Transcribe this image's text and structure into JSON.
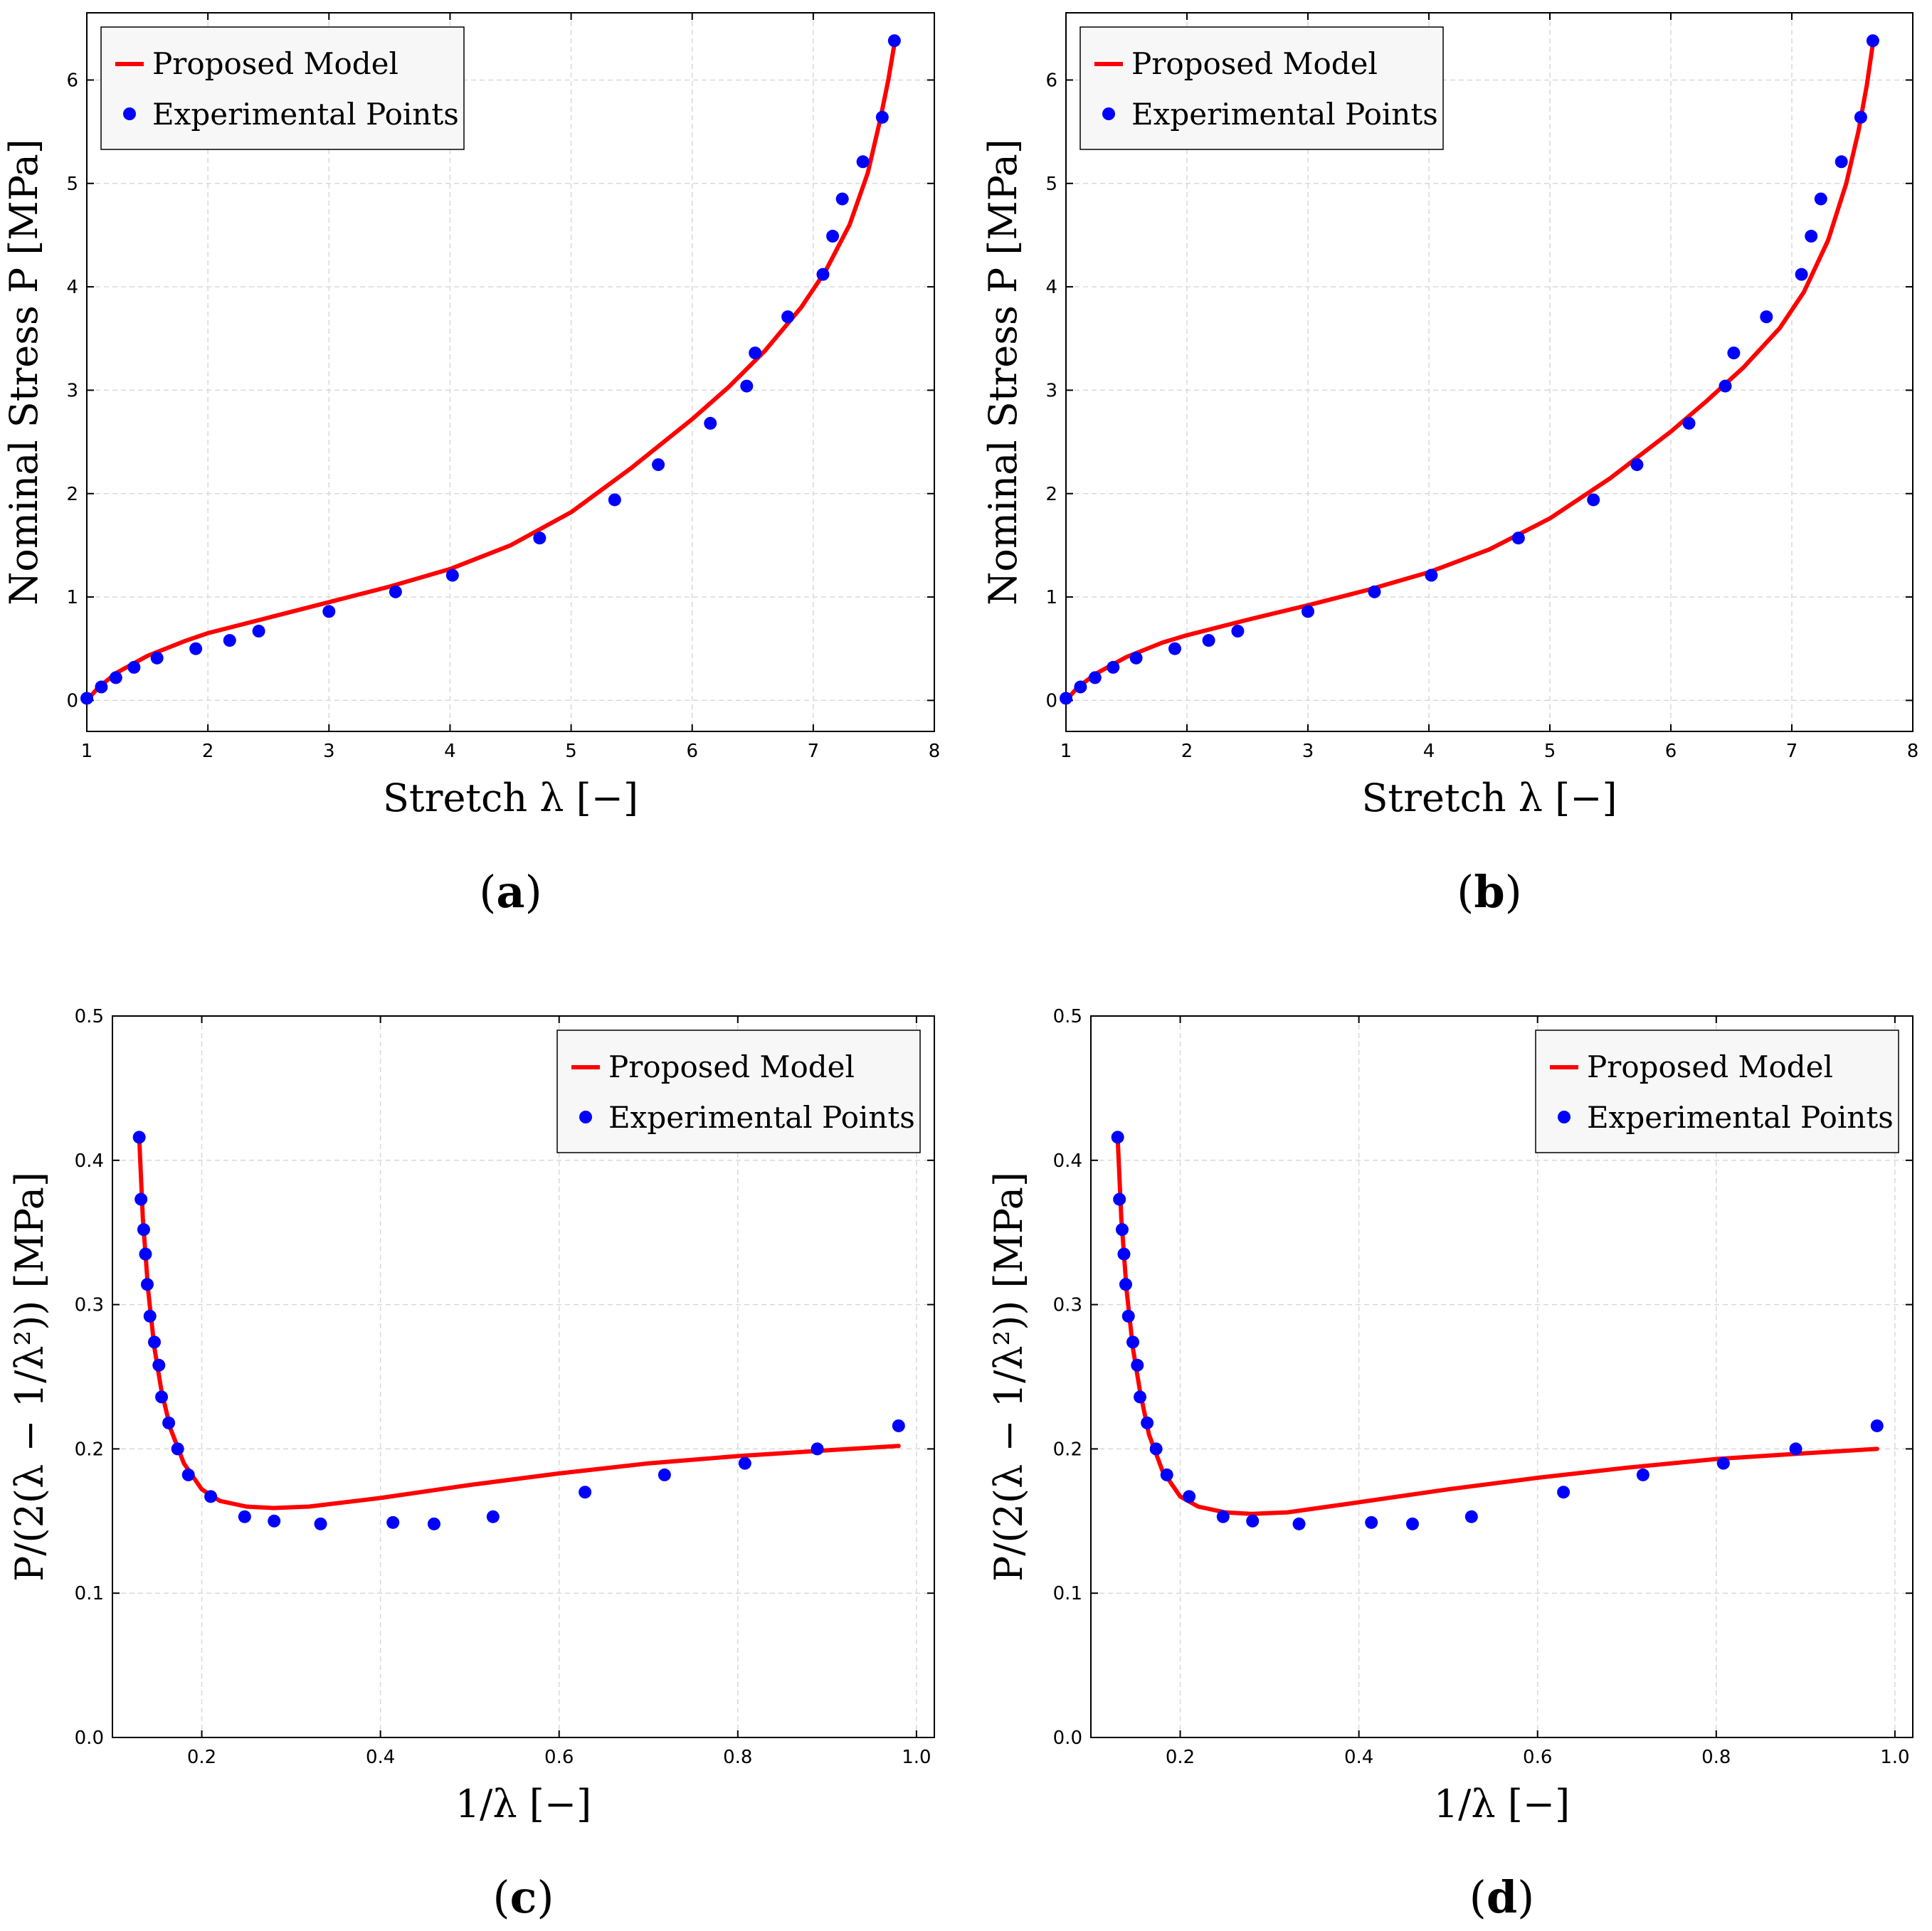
{
  "chart_data": [
    {
      "type": "scatter+line",
      "panel_label": "a",
      "xlabel": "Stretch λ [−]",
      "ylabel": "Nominal Stress P [MPa]",
      "xlim": [
        1,
        8
      ],
      "ylim": [
        -0.3,
        6.65
      ],
      "xticks": [
        1,
        2,
        3,
        4,
        5,
        6,
        7,
        8
      ],
      "yticks": [
        0,
        1,
        2,
        3,
        4,
        5,
        6
      ],
      "grid": true,
      "legend_position": "top-left",
      "legend": [
        "Proposed Model",
        "Experimental Points"
      ],
      "series": [
        {
          "name": "Proposed Model",
          "kind": "line",
          "color": "#ff0000",
          "x": [
            1.0,
            1.1,
            1.25,
            1.5,
            1.8,
            2.0,
            2.5,
            3.0,
            3.5,
            4.0,
            4.5,
            5.0,
            5.5,
            6.0,
            6.3,
            6.6,
            6.9,
            7.1,
            7.3,
            7.45,
            7.55,
            7.62,
            7.67
          ],
          "y": [
            0.0,
            0.13,
            0.27,
            0.43,
            0.57,
            0.65,
            0.8,
            0.95,
            1.1,
            1.27,
            1.5,
            1.82,
            2.25,
            2.72,
            3.03,
            3.38,
            3.8,
            4.15,
            4.6,
            5.1,
            5.6,
            6.0,
            6.35
          ]
        },
        {
          "name": "Experimental Points",
          "kind": "scatter",
          "color": "#0000ff",
          "x": [
            1.0,
            1.12,
            1.24,
            1.39,
            1.58,
            1.9,
            2.18,
            2.42,
            3.0,
            3.55,
            4.02,
            4.74,
            5.36,
            5.72,
            6.15,
            6.45,
            6.52,
            6.79,
            7.08,
            7.16,
            7.24,
            7.41,
            7.57,
            7.67
          ],
          "y": [
            0.02,
            0.13,
            0.22,
            0.32,
            0.41,
            0.5,
            0.58,
            0.67,
            0.86,
            1.05,
            1.21,
            1.57,
            1.94,
            2.28,
            2.68,
            3.04,
            3.36,
            3.71,
            4.12,
            4.49,
            4.85,
            5.21,
            5.64,
            6.38
          ]
        }
      ]
    },
    {
      "type": "scatter+line",
      "panel_label": "b",
      "xlabel": "Stretch λ [−]",
      "ylabel": "Nominal Stress P [MPa]",
      "xlim": [
        1,
        8
      ],
      "ylim": [
        -0.3,
        6.65
      ],
      "xticks": [
        1,
        2,
        3,
        4,
        5,
        6,
        7,
        8
      ],
      "yticks": [
        0,
        1,
        2,
        3,
        4,
        5,
        6
      ],
      "grid": true,
      "legend_position": "top-left",
      "legend": [
        "Proposed Model",
        "Experimental Points"
      ],
      "series": [
        {
          "name": "Proposed Model",
          "kind": "line",
          "color": "#ff0000",
          "x": [
            1.0,
            1.1,
            1.25,
            1.5,
            1.8,
            2.0,
            2.5,
            3.0,
            3.5,
            4.0,
            4.5,
            5.0,
            5.5,
            6.0,
            6.3,
            6.6,
            6.9,
            7.1,
            7.3,
            7.45,
            7.55,
            7.62,
            7.67
          ],
          "y": [
            0.0,
            0.13,
            0.26,
            0.42,
            0.56,
            0.63,
            0.78,
            0.92,
            1.07,
            1.24,
            1.46,
            1.76,
            2.15,
            2.6,
            2.9,
            3.22,
            3.6,
            3.95,
            4.45,
            5.0,
            5.5,
            5.95,
            6.35
          ]
        },
        {
          "name": "Experimental Points",
          "kind": "scatter",
          "color": "#0000ff",
          "x": [
            1.0,
            1.12,
            1.24,
            1.39,
            1.58,
            1.9,
            2.18,
            2.42,
            3.0,
            3.55,
            4.02,
            4.74,
            5.36,
            5.72,
            6.15,
            6.45,
            6.52,
            6.79,
            7.08,
            7.16,
            7.24,
            7.41,
            7.57,
            7.67
          ],
          "y": [
            0.02,
            0.13,
            0.22,
            0.32,
            0.41,
            0.5,
            0.58,
            0.67,
            0.86,
            1.05,
            1.21,
            1.57,
            1.94,
            2.28,
            2.68,
            3.04,
            3.36,
            3.71,
            4.12,
            4.49,
            4.85,
            5.21,
            5.64,
            6.38
          ]
        }
      ]
    },
    {
      "type": "scatter+line",
      "panel_label": "c",
      "xlabel": "1/λ [−]",
      "ylabel": "P/(2(λ − 1/λ²)) [MPa]",
      "xlim": [
        0.1,
        1.02
      ],
      "ylim": [
        0.0,
        0.5
      ],
      "xticks": [
        0.2,
        0.4,
        0.6,
        0.8,
        1.0
      ],
      "xtick_labels": [
        "0.2",
        "0.4",
        "0.6",
        "0.8",
        "1.0"
      ],
      "yticks": [
        0.0,
        0.1,
        0.2,
        0.3,
        0.4,
        0.5
      ],
      "ytick_labels": [
        "0.0",
        "0.1",
        "0.2",
        "0.3",
        "0.4",
        "0.5"
      ],
      "grid": true,
      "legend_position": "top-right",
      "legend": [
        "Proposed Model",
        "Experimental Points"
      ],
      "series": [
        {
          "name": "Proposed Model",
          "kind": "line",
          "color": "#ff0000",
          "x": [
            0.13,
            0.134,
            0.14,
            0.147,
            0.155,
            0.165,
            0.18,
            0.2,
            0.22,
            0.25,
            0.28,
            0.32,
            0.4,
            0.5,
            0.6,
            0.7,
            0.8,
            0.9,
            0.98
          ],
          "y": [
            0.415,
            0.36,
            0.31,
            0.27,
            0.24,
            0.214,
            0.19,
            0.172,
            0.164,
            0.16,
            0.159,
            0.16,
            0.166,
            0.175,
            0.183,
            0.19,
            0.195,
            0.199,
            0.202
          ]
        },
        {
          "name": "Experimental Points",
          "kind": "scatter",
          "color": "#0000ff",
          "x": [
            0.13,
            0.132,
            0.135,
            0.137,
            0.139,
            0.142,
            0.147,
            0.152,
            0.155,
            0.163,
            0.173,
            0.185,
            0.21,
            0.248,
            0.281,
            0.333,
            0.414,
            0.46,
            0.526,
            0.629,
            0.718,
            0.808,
            0.889,
            0.98
          ],
          "y": [
            0.416,
            0.373,
            0.352,
            0.335,
            0.314,
            0.292,
            0.274,
            0.258,
            0.236,
            0.218,
            0.2,
            0.182,
            0.167,
            0.153,
            0.15,
            0.148,
            0.149,
            0.148,
            0.153,
            0.17,
            0.182,
            0.19,
            0.2,
            0.216
          ]
        }
      ]
    },
    {
      "type": "scatter+line",
      "panel_label": "d",
      "xlabel": "1/λ [−]",
      "ylabel": "P/(2(λ − 1/λ²)) [MPa]",
      "xlim": [
        0.1,
        1.02
      ],
      "ylim": [
        0.0,
        0.5
      ],
      "xticks": [
        0.2,
        0.4,
        0.6,
        0.8,
        1.0
      ],
      "xtick_labels": [
        "0.2",
        "0.4",
        "0.6",
        "0.8",
        "1.0"
      ],
      "yticks": [
        0.0,
        0.1,
        0.2,
        0.3,
        0.4,
        0.5
      ],
      "ytick_labels": [
        "0.0",
        "0.1",
        "0.2",
        "0.3",
        "0.4",
        "0.5"
      ],
      "grid": true,
      "legend_position": "top-right",
      "legend": [
        "Proposed Model",
        "Experimental Points"
      ],
      "series": [
        {
          "name": "Proposed Model",
          "kind": "line",
          "color": "#ff0000",
          "x": [
            0.13,
            0.134,
            0.14,
            0.147,
            0.155,
            0.165,
            0.18,
            0.2,
            0.22,
            0.25,
            0.28,
            0.32,
            0.4,
            0.5,
            0.6,
            0.7,
            0.8,
            0.9,
            0.98
          ],
          "y": [
            0.415,
            0.36,
            0.31,
            0.27,
            0.24,
            0.21,
            0.185,
            0.167,
            0.16,
            0.156,
            0.155,
            0.156,
            0.163,
            0.172,
            0.18,
            0.187,
            0.193,
            0.197,
            0.2
          ]
        },
        {
          "name": "Experimental Points",
          "kind": "scatter",
          "color": "#0000ff",
          "x": [
            0.13,
            0.132,
            0.135,
            0.137,
            0.139,
            0.142,
            0.147,
            0.152,
            0.155,
            0.163,
            0.173,
            0.185,
            0.21,
            0.248,
            0.281,
            0.333,
            0.414,
            0.46,
            0.526,
            0.629,
            0.718,
            0.808,
            0.889,
            0.98
          ],
          "y": [
            0.416,
            0.373,
            0.352,
            0.335,
            0.314,
            0.292,
            0.274,
            0.258,
            0.236,
            0.218,
            0.2,
            0.182,
            0.167,
            0.153,
            0.15,
            0.148,
            0.149,
            0.148,
            0.153,
            0.17,
            0.182,
            0.19,
            0.2,
            0.216
          ]
        }
      ]
    }
  ]
}
